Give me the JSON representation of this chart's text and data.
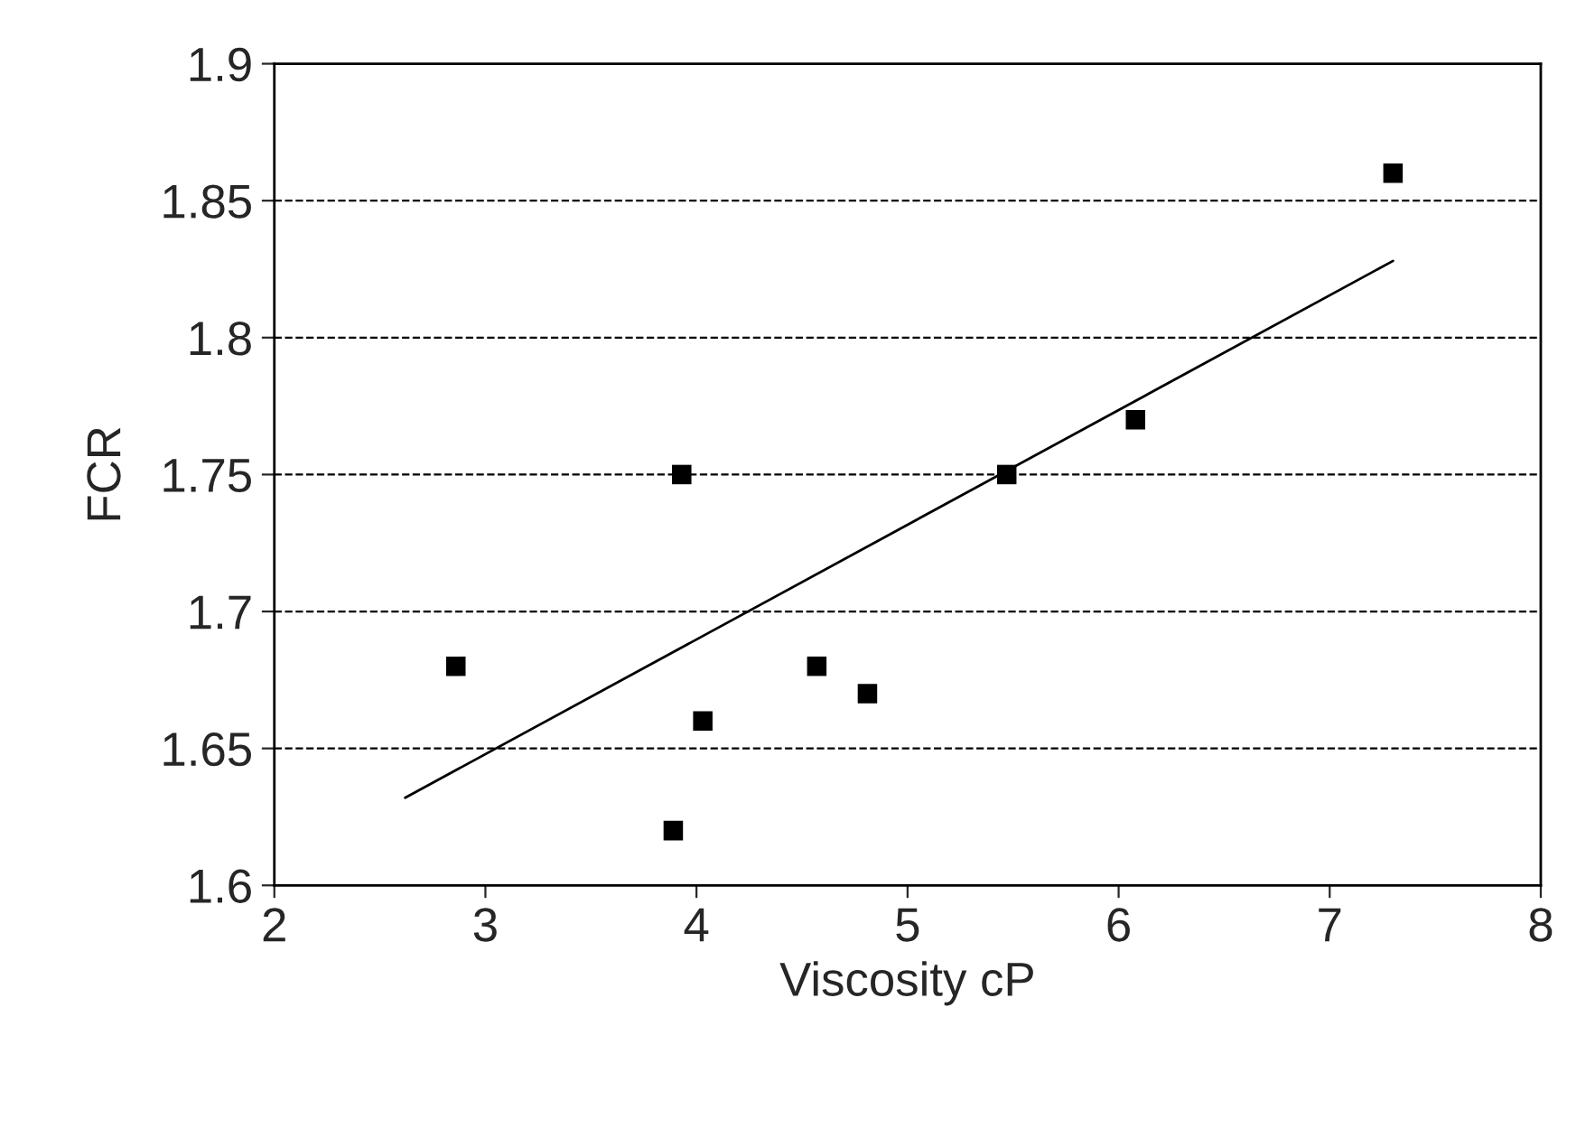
{
  "chart_data": {
    "type": "scatter",
    "xlabel": "Viscosity cP",
    "ylabel": "FCR",
    "xlim": [
      2,
      8
    ],
    "xticks": [
      2,
      3,
      4,
      5,
      6,
      7,
      8
    ],
    "ylim": [
      1.6,
      1.9
    ],
    "yticks": [
      1.6,
      1.65,
      1.7,
      1.75,
      1.8,
      1.85,
      1.9
    ],
    "grid": "y",
    "marker": "square",
    "series": [
      {
        "color": "#000000",
        "x": [
          2.86,
          3.93,
          3.89,
          4.03,
          4.57,
          4.81,
          5.47,
          6.08,
          7.3
        ],
        "values": [
          1.68,
          1.75,
          1.62,
          1.66,
          1.68,
          1.67,
          1.75,
          1.77,
          1.86
        ]
      },
      {
        "type": "line",
        "color": "#000000",
        "x": [
          2.62,
          7.3
        ],
        "values": [
          1.632,
          1.828
        ],
        "line_style": "solid",
        "marker": "none"
      }
    ]
  }
}
